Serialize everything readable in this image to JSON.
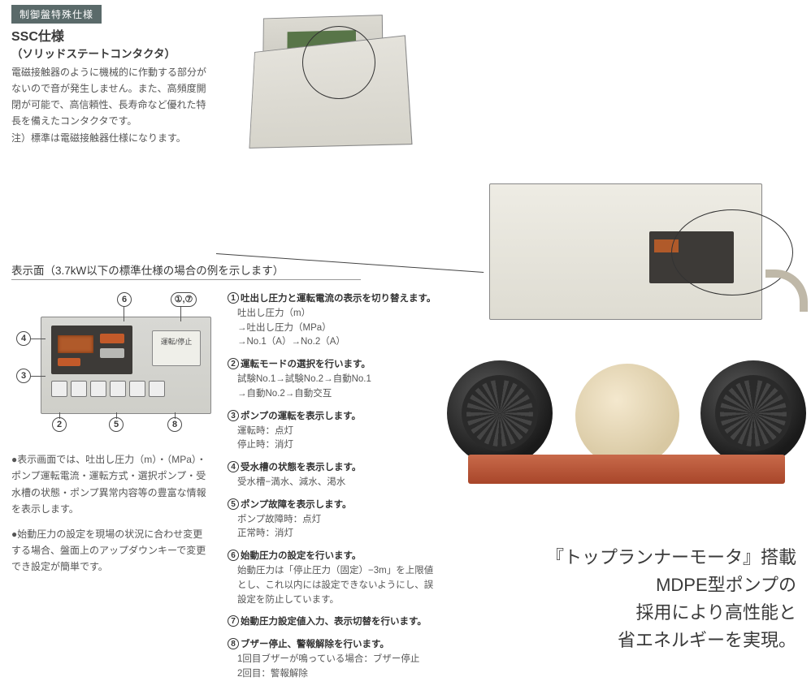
{
  "ssc": {
    "badge": "制御盤特殊仕様",
    "title": "SSC仕様",
    "subtitle": "（ソリッドステートコンタクタ）",
    "body": "電磁接触器のように機械的に作動する部分がないので音が発生しません。また、高頻度開閉が可能で、高信頼性、長寿命など優れた特長を備えたコンタクタです。",
    "note": "注）標準は電磁接触器仕様になります。"
  },
  "displayHeading": "表示面（3.7kW以下の標準仕様の場合の例を示します）",
  "panelStop": "運転/停止",
  "calloutNums": [
    "1",
    "2",
    "3",
    "4",
    "5",
    "6",
    "7",
    "8"
  ],
  "calloutTop6": "⑥",
  "calloutTop17": "①,⑦",
  "desc": [
    {
      "n": "①",
      "h": "吐出し圧力と運転電流の表示を切り替えます。",
      "b": "吐出し圧力（m）\n→吐出し圧力（MPa）\n→No.1（A）→No.2（A）"
    },
    {
      "n": "②",
      "h": "運転モードの選択を行います。",
      "b": "試験No.1→試験No.2→自動No.1\n→自動No.2→自動交互"
    },
    {
      "n": "③",
      "h": "ポンプの運転を表示します。",
      "b": "運転時：点灯\n停止時：消灯"
    },
    {
      "n": "④",
      "h": "受水槽の状態を表示します。",
      "b": "受水槽−満水、減水、渇水"
    },
    {
      "n": "⑤",
      "h": "ポンプ故障を表示します。",
      "b": "ポンプ故障時：点灯\n正常時：消灯"
    },
    {
      "n": "⑥",
      "h": "始動圧力の設定を行います。",
      "b": "始動圧力は「停止圧力（固定）−3m」を上限値とし、これ以内には設定できないようにし、誤設定を防止しています。"
    },
    {
      "n": "⑦",
      "h": "始動圧力設定値入力、表示切替を行います。",
      "b": ""
    },
    {
      "n": "⑧",
      "h": "ブザー停止、警報解除を行います。",
      "b": "1回目ブザーが鳴っている場合：ブザー停止\n2回目：警報解除"
    }
  ],
  "paras": {
    "p1": "●表示画面では、吐出し圧力（m）・（MPa）・ポンプ運転電流・運転方式・選択ポンプ・受水槽の状態・ポンプ異常内容等の豊富な情報を表示します。",
    "p2": "●始動圧力の設定を現場の状況に合わせ変更する場合、盤面上のアップダウンキーで変更でき設定が簡単です。"
  },
  "tagline": {
    "l1": "『トップランナーモータ』搭載",
    "l2": "MDPE型ポンプの",
    "l3": "採用により高性能と",
    "l4": "省エネルギーを実現。"
  },
  "colors": {
    "badge_bg": "#5a6a6a",
    "text": "#4a4a4a",
    "accent_orange": "#c35a2a",
    "pump_base": "#c86a4a"
  }
}
